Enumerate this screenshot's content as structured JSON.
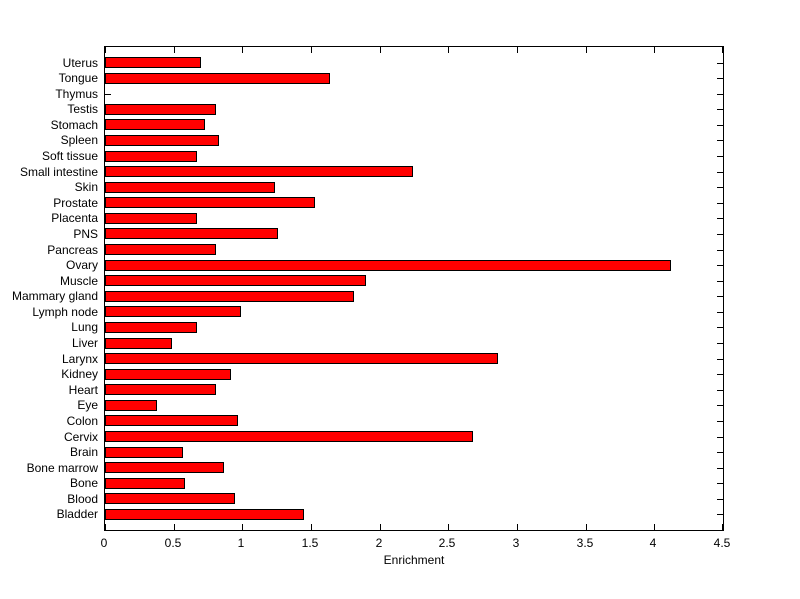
{
  "figure": {
    "background": "#ffffff",
    "text_color": "#000000"
  },
  "chart_data": {
    "type": "bar",
    "orientation": "horizontal",
    "title": "",
    "xlabel": "Enrichment",
    "ylabel": "",
    "xlim": [
      0,
      4.5
    ],
    "xticks": [
      0,
      0.5,
      1,
      1.5,
      2,
      2.5,
      3,
      3.5,
      4,
      4.5
    ],
    "xtick_labels": [
      "0",
      "0.5",
      "1",
      "1.5",
      "2",
      "2.5",
      "3",
      "3.5",
      "4",
      "4.5"
    ],
    "grid": false,
    "legend": null,
    "bar_color": "#ff0000",
    "bar_edge_color": "#000000",
    "categories": [
      "Uterus",
      "Tongue",
      "Thymus",
      "Testis",
      "Stomach",
      "Spleen",
      "Soft tissue",
      "Small intestine",
      "Skin",
      "Prostate",
      "Placenta",
      "PNS",
      "Pancreas",
      "Ovary",
      "Muscle",
      "Mammary gland",
      "Lymph node",
      "Lung",
      "Liver",
      "Larynx",
      "Kidney",
      "Heart",
      "Eye",
      "Colon",
      "Cervix",
      "Brain",
      "Bone marrow",
      "Bone",
      "Blood",
      "Bladder"
    ],
    "values": [
      0.7,
      1.64,
      0.0,
      0.81,
      0.73,
      0.83,
      0.67,
      2.24,
      1.24,
      1.53,
      0.67,
      1.26,
      0.81,
      4.12,
      1.9,
      1.81,
      0.99,
      0.67,
      0.49,
      2.86,
      0.92,
      0.81,
      0.38,
      0.97,
      2.68,
      0.57,
      0.87,
      0.58,
      0.95,
      1.45
    ]
  }
}
